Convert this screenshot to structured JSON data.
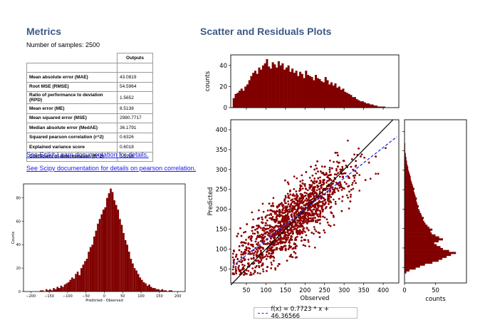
{
  "metrics_section": {
    "title": "Metrics",
    "num_samples": "Number of samples: 2500",
    "table_header": "Outputs",
    "rows": [
      {
        "label": "Mean absolute error (MAE)",
        "value": "43.0819"
      },
      {
        "label": "Root MSE (RMSE)",
        "value": "54.5964"
      },
      {
        "label": "Ratio of performance to deviation (RPD)",
        "value": "1.5652"
      },
      {
        "label": "Mean error (ME)",
        "value": "8.5138"
      },
      {
        "label": "Mean squared error (MSE)",
        "value": "2980.7717"
      },
      {
        "label": "Median absolute error (MedAE)",
        "value": "36.1791"
      },
      {
        "label": "Squared pearson correlation (r^2)",
        "value": "0.6326"
      },
      {
        "label": "Explained variance score",
        "value": "0.6018"
      },
      {
        "label": "Coefficient of determination (R^2)",
        "value": "0.5918"
      }
    ],
    "link_sklearn": "See Scikit-Learn documentation for details.",
    "link_scipy": "See Scipy documentation for details on pearson correlation."
  },
  "plots_section": {
    "title": "Scatter and Residuals Plots",
    "legend": "f(x) = 0.7723 * x + 46.36566"
  },
  "colors": {
    "bar": "#800000",
    "point": "#8b0000",
    "fit_line": "#2a2ae8",
    "identity_line": "#000000",
    "heading": "#3c5a86",
    "link": "#1a1aee"
  },
  "chart_data": [
    {
      "id": "residuals-histogram",
      "type": "bar",
      "xlabel": "Predicted - Observed",
      "ylabel": "Counts",
      "x_ticks": [
        -200,
        -150,
        -100,
        -50,
        0,
        50,
        100,
        150,
        200
      ],
      "y_ticks": [
        0,
        20,
        40,
        60,
        80
      ],
      "xlim": [
        -220,
        220
      ],
      "ylim": [
        0,
        92
      ],
      "bin_width": 5,
      "bin_centers": [
        -172.5,
        -167.5,
        -162.5,
        -157.5,
        -152.5,
        -147.5,
        -142.5,
        -137.5,
        -132.5,
        -127.5,
        -122.5,
        -117.5,
        -112.5,
        -107.5,
        -102.5,
        -97.5,
        -92.5,
        -87.5,
        -82.5,
        -77.5,
        -72.5,
        -67.5,
        -62.5,
        -57.5,
        -52.5,
        -47.5,
        -42.5,
        -37.5,
        -32.5,
        -27.5,
        -22.5,
        -17.5,
        -12.5,
        -7.5,
        -2.5,
        2.5,
        7.5,
        12.5,
        17.5,
        22.5,
        27.5,
        32.5,
        37.5,
        42.5,
        47.5,
        52.5,
        57.5,
        62.5,
        67.5,
        72.5,
        77.5,
        82.5,
        87.5,
        92.5,
        97.5,
        102.5,
        107.5,
        112.5,
        117.5,
        122.5,
        127.5,
        132.5,
        137.5,
        142.5,
        147.5,
        152.5,
        157.5,
        162.5,
        167.5,
        172.5,
        177.5,
        182.5
      ],
      "values": [
        1,
        1,
        0,
        2,
        1,
        2,
        1,
        3,
        2,
        4,
        3,
        5,
        4,
        6,
        7,
        8,
        10,
        12,
        11,
        15,
        17,
        14,
        20,
        23,
        26,
        28,
        34,
        38,
        40,
        47,
        52,
        58,
        62,
        66,
        70,
        72,
        80,
        84,
        88,
        85,
        78,
        74,
        70,
        62,
        57,
        50,
        44,
        40,
        34,
        28,
        24,
        20,
        18,
        15,
        12,
        10,
        8,
        7,
        5,
        6,
        4,
        3,
        3,
        2,
        2,
        1,
        2,
        1,
        1,
        0,
        1,
        1
      ]
    },
    {
      "id": "observed-histogram",
      "type": "bar",
      "ylabel": "counts",
      "y_ticks": [
        0,
        20,
        40
      ],
      "xlim": [
        10,
        440
      ],
      "ylim": [
        0,
        50
      ],
      "bin_width": 5,
      "bin_start": 15,
      "values": [
        9,
        13,
        14,
        16,
        18,
        16,
        20,
        22,
        26,
        30,
        33,
        35,
        32,
        38,
        36,
        40,
        42,
        46,
        39,
        37,
        43,
        41,
        38,
        44,
        40,
        42,
        36,
        38,
        40,
        34,
        37,
        33,
        35,
        30,
        34,
        32,
        28,
        35,
        31,
        30,
        29,
        26,
        31,
        28,
        27,
        25,
        24,
        29,
        26,
        22,
        24,
        21,
        23,
        19,
        20,
        17,
        18,
        15,
        14,
        13,
        12,
        10,
        10,
        8,
        7,
        6,
        6,
        5,
        4,
        4,
        3,
        3,
        2,
        2,
        1,
        1,
        1,
        1
      ]
    },
    {
      "id": "predicted-histogram",
      "type": "bar",
      "orientation": "horizontal",
      "xlabel": "counts",
      "x_ticks": [
        0,
        50
      ],
      "xlim": [
        0,
        100
      ],
      "ylim": [
        10,
        430
      ],
      "bin_width": 5,
      "bin_start": 35,
      "values": [
        3,
        8,
        18,
        25,
        33,
        45,
        55,
        61,
        68,
        75,
        83,
        72,
        62,
        58,
        52,
        48,
        55,
        62,
        56,
        50,
        44,
        42,
        45,
        40,
        37,
        34,
        32,
        30,
        31,
        28,
        27,
        25,
        24,
        22,
        23,
        21,
        20,
        19,
        20,
        18,
        17,
        16,
        15,
        16,
        14,
        13,
        12,
        11,
        10,
        10,
        9,
        8,
        7,
        6,
        6,
        5,
        4,
        4,
        3,
        3,
        2,
        2,
        1,
        1,
        1,
        1,
        1
      ]
    },
    {
      "id": "scatter-predicted-vs-observed",
      "type": "scatter",
      "xlabel": "Observed",
      "ylabel": "Predicted",
      "x_ticks": [
        50,
        100,
        150,
        200,
        250,
        300,
        350,
        400
      ],
      "y_ticks": [
        50,
        100,
        150,
        200,
        250,
        300,
        350,
        400
      ],
      "xlim": [
        10,
        440
      ],
      "ylim": [
        15,
        425
      ],
      "n_points": 2500,
      "fit_line": {
        "slope": 0.7723,
        "intercept": 46.36566
      },
      "identity_line": true
    }
  ]
}
